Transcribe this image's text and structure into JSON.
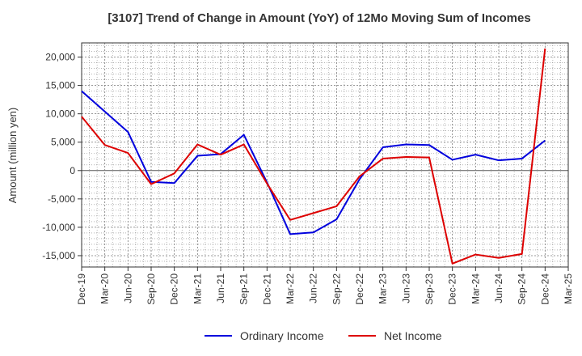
{
  "chart_data": {
    "type": "line",
    "title": "[3107]  Trend of Change in Amount (YoY) of 12Mo Moving Sum of Incomes",
    "xlabel": "",
    "ylabel": "Amount (million yen)",
    "ylim": [
      -17000,
      22500
    ],
    "yticks": [
      20000,
      15000,
      10000,
      5000,
      0,
      -5000,
      -10000,
      -15000
    ],
    "ytick_labels": [
      "20,000",
      "15,000",
      "10,000",
      "5,000",
      "0",
      "-5,000",
      "-10,000",
      "-15,000"
    ],
    "categories": [
      "Dec-19",
      "Mar-20",
      "Jun-20",
      "Sep-20",
      "Dec-20",
      "Mar-21",
      "Jun-21",
      "Sep-21",
      "Dec-21",
      "Mar-22",
      "Jun-22",
      "Sep-22",
      "Dec-22",
      "Mar-23",
      "Jun-23",
      "Sep-23",
      "Dec-23",
      "Mar-24",
      "Jun-24",
      "Sep-24",
      "Dec-24",
      "Mar-25"
    ],
    "grid": true,
    "legend_position": "bottom",
    "series": [
      {
        "name": "Ordinary Income",
        "color": "#0000dd",
        "values": [
          14000,
          10400,
          6800,
          -2000,
          -2200,
          2600,
          2900,
          6300,
          -2100,
          -11200,
          -10900,
          -8600,
          -1500,
          4100,
          4600,
          4500,
          1900,
          2800,
          1800,
          2100,
          5300,
          null
        ]
      },
      {
        "name": "Net Income",
        "color": "#dd0000",
        "values": [
          9500,
          4500,
          3100,
          -2400,
          -500,
          4600,
          2800,
          4600,
          -2300,
          -8700,
          -7500,
          -6300,
          -1000,
          2100,
          2400,
          2300,
          -16400,
          -14800,
          -15400,
          -14700,
          21500,
          null
        ]
      }
    ]
  }
}
